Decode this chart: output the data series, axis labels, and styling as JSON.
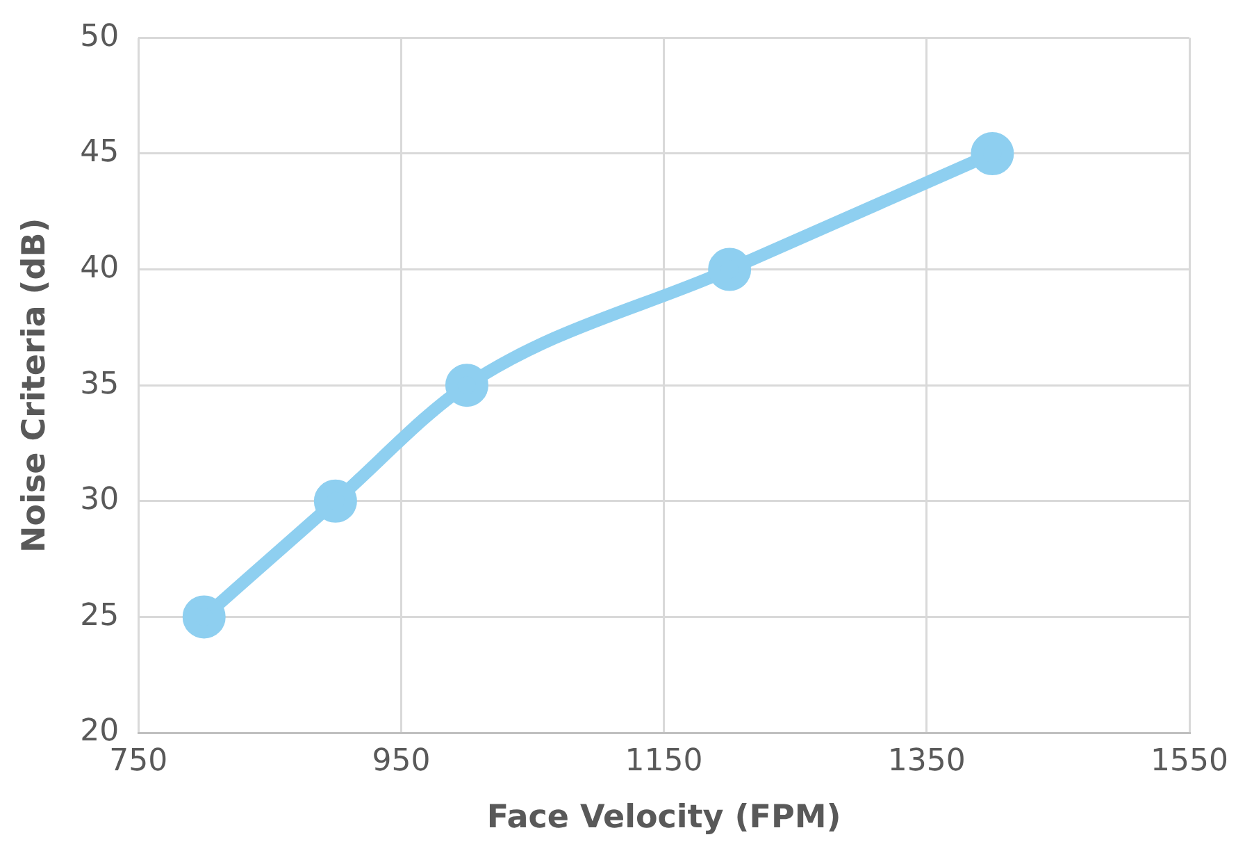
{
  "chart_data": {
    "type": "line",
    "xlabel": "Face Velocity (FPM)",
    "ylabel": "Noise Criteria (dB)",
    "x": [
      800,
      900,
      1000,
      1200,
      1400
    ],
    "series": [
      {
        "color": "#8ecff0",
        "values": [
          25,
          30,
          35,
          40,
          45
        ]
      }
    ],
    "xlim": [
      750,
      1550
    ],
    "xticks": [
      750,
      950,
      1150,
      1350,
      1550
    ],
    "ylim": [
      20,
      50
    ],
    "yticks": [
      20,
      25,
      30,
      35,
      40,
      45,
      50
    ],
    "grid": true,
    "legend": false,
    "marker": "circle",
    "line_style": "solid"
  }
}
